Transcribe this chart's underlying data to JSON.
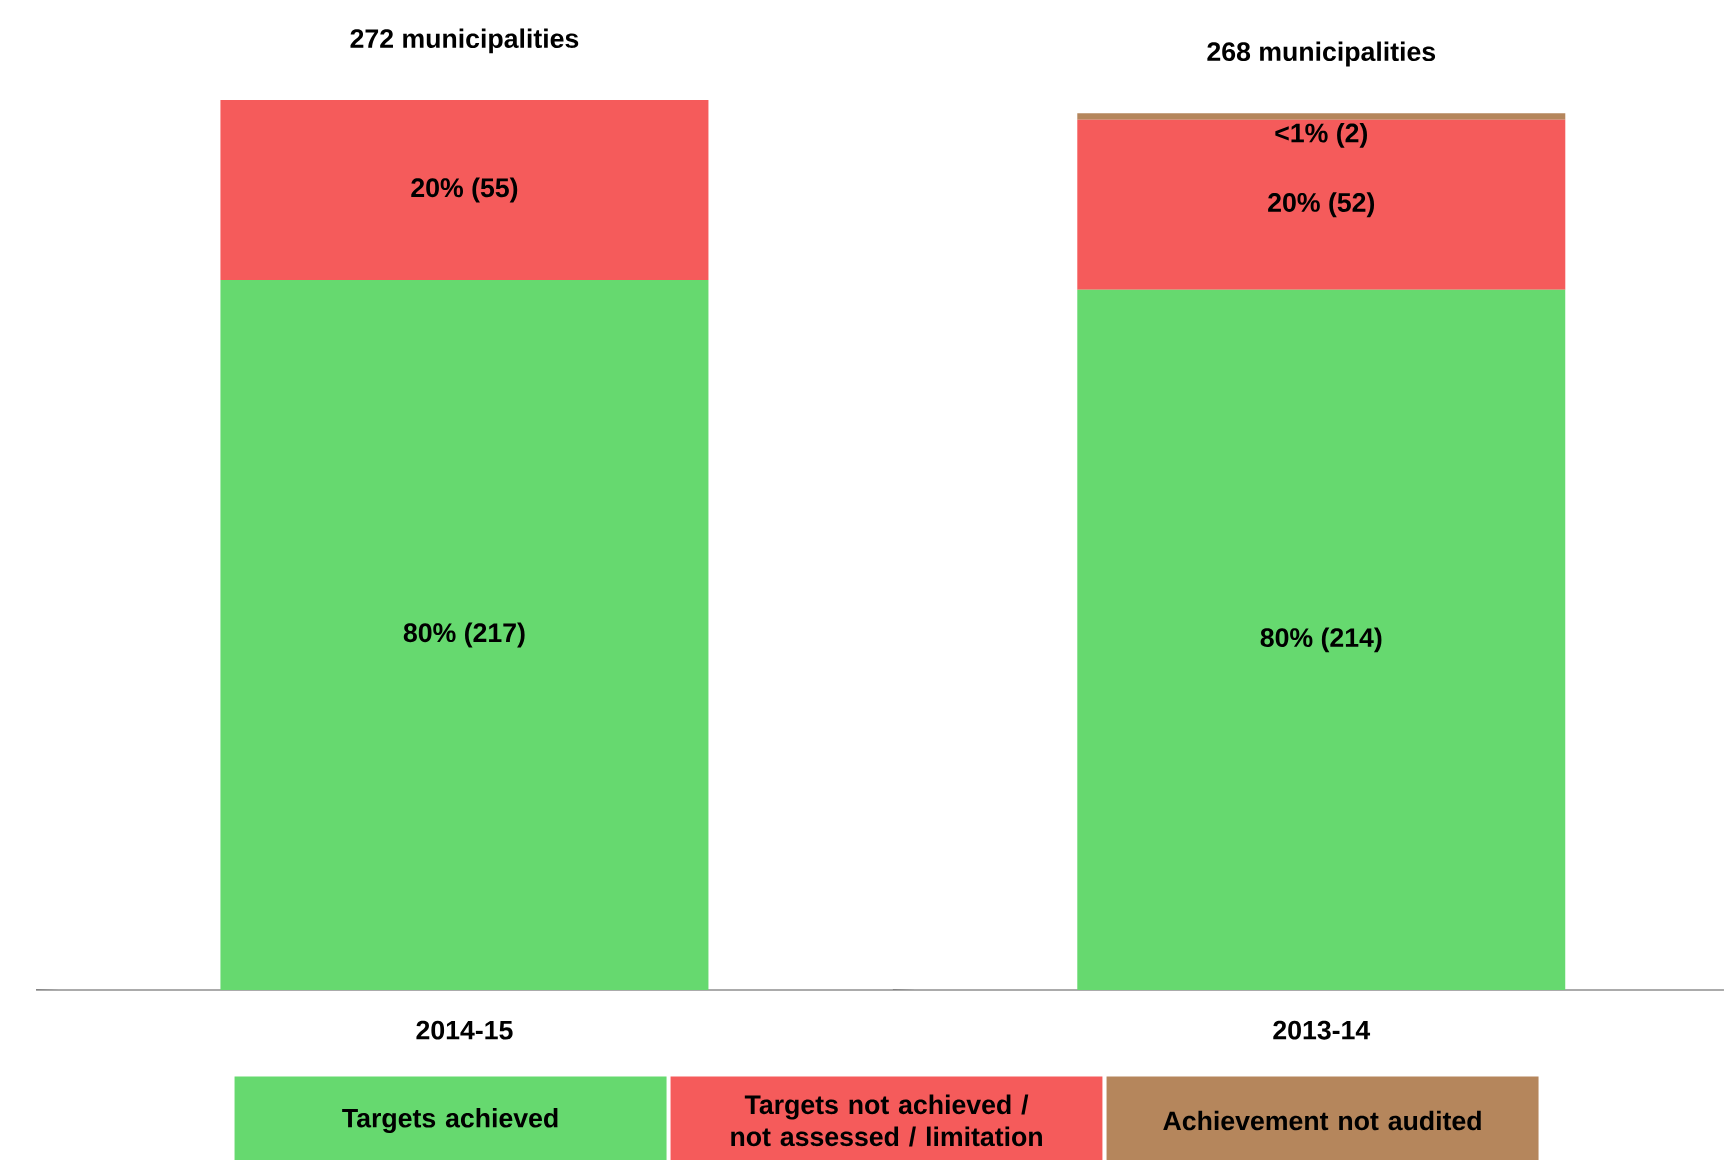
{
  "chart_data": {
    "type": "bar",
    "stacked": true,
    "categories": [
      "2014-15",
      "2013-14"
    ],
    "series": [
      {
        "name": "Targets achieved",
        "color": "#66d96f",
        "values": [
          217,
          214
        ],
        "value_labels": [
          "80% (217)",
          "80% (214)"
        ]
      },
      {
        "name": "Targets not achieved / not assessed / limitation",
        "color": "#f55b5b",
        "values": [
          55,
          52
        ],
        "value_labels": [
          "20% (55)",
          "20% (52)"
        ]
      },
      {
        "name": "Achievement not audited",
        "color": "#b5865c",
        "values": [
          0,
          2
        ],
        "value_labels": [
          null,
          "<1% (2)"
        ]
      }
    ],
    "totals": [
      "272 municipalities",
      "268 municipalities"
    ],
    "legend": "bottom"
  }
}
